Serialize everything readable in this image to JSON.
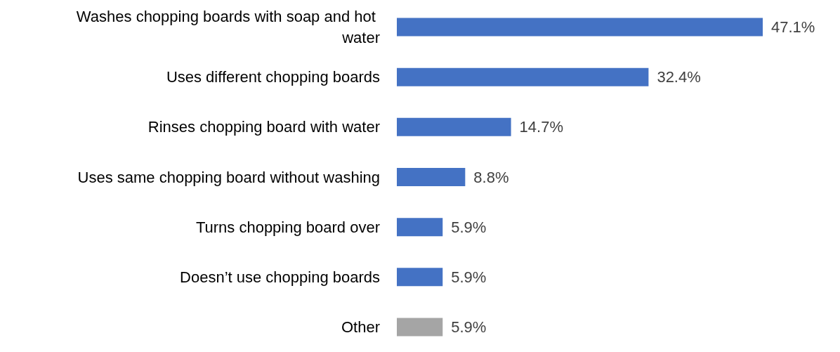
{
  "chart_data": {
    "type": "bar",
    "orientation": "horizontal",
    "categories": [
      "Washes chopping boards with soap and hot water",
      "Uses different chopping boards",
      "Rinses chopping board with water",
      "Uses same chopping board without washing",
      "Turns chopping board over",
      "Doesn’t use chopping boards",
      "Other"
    ],
    "values": [
      47.1,
      32.4,
      14.7,
      8.8,
      5.9,
      5.9,
      5.9
    ],
    "colors": [
      "#4472c4",
      "#4472c4",
      "#4472c4",
      "#4472c4",
      "#4472c4",
      "#4472c4",
      "#a5a5a5"
    ],
    "value_labels": [
      "47.1%",
      "32.4%",
      "14.7%",
      "8.8%",
      "5.9%",
      "5.9%",
      "5.9%"
    ]
  }
}
